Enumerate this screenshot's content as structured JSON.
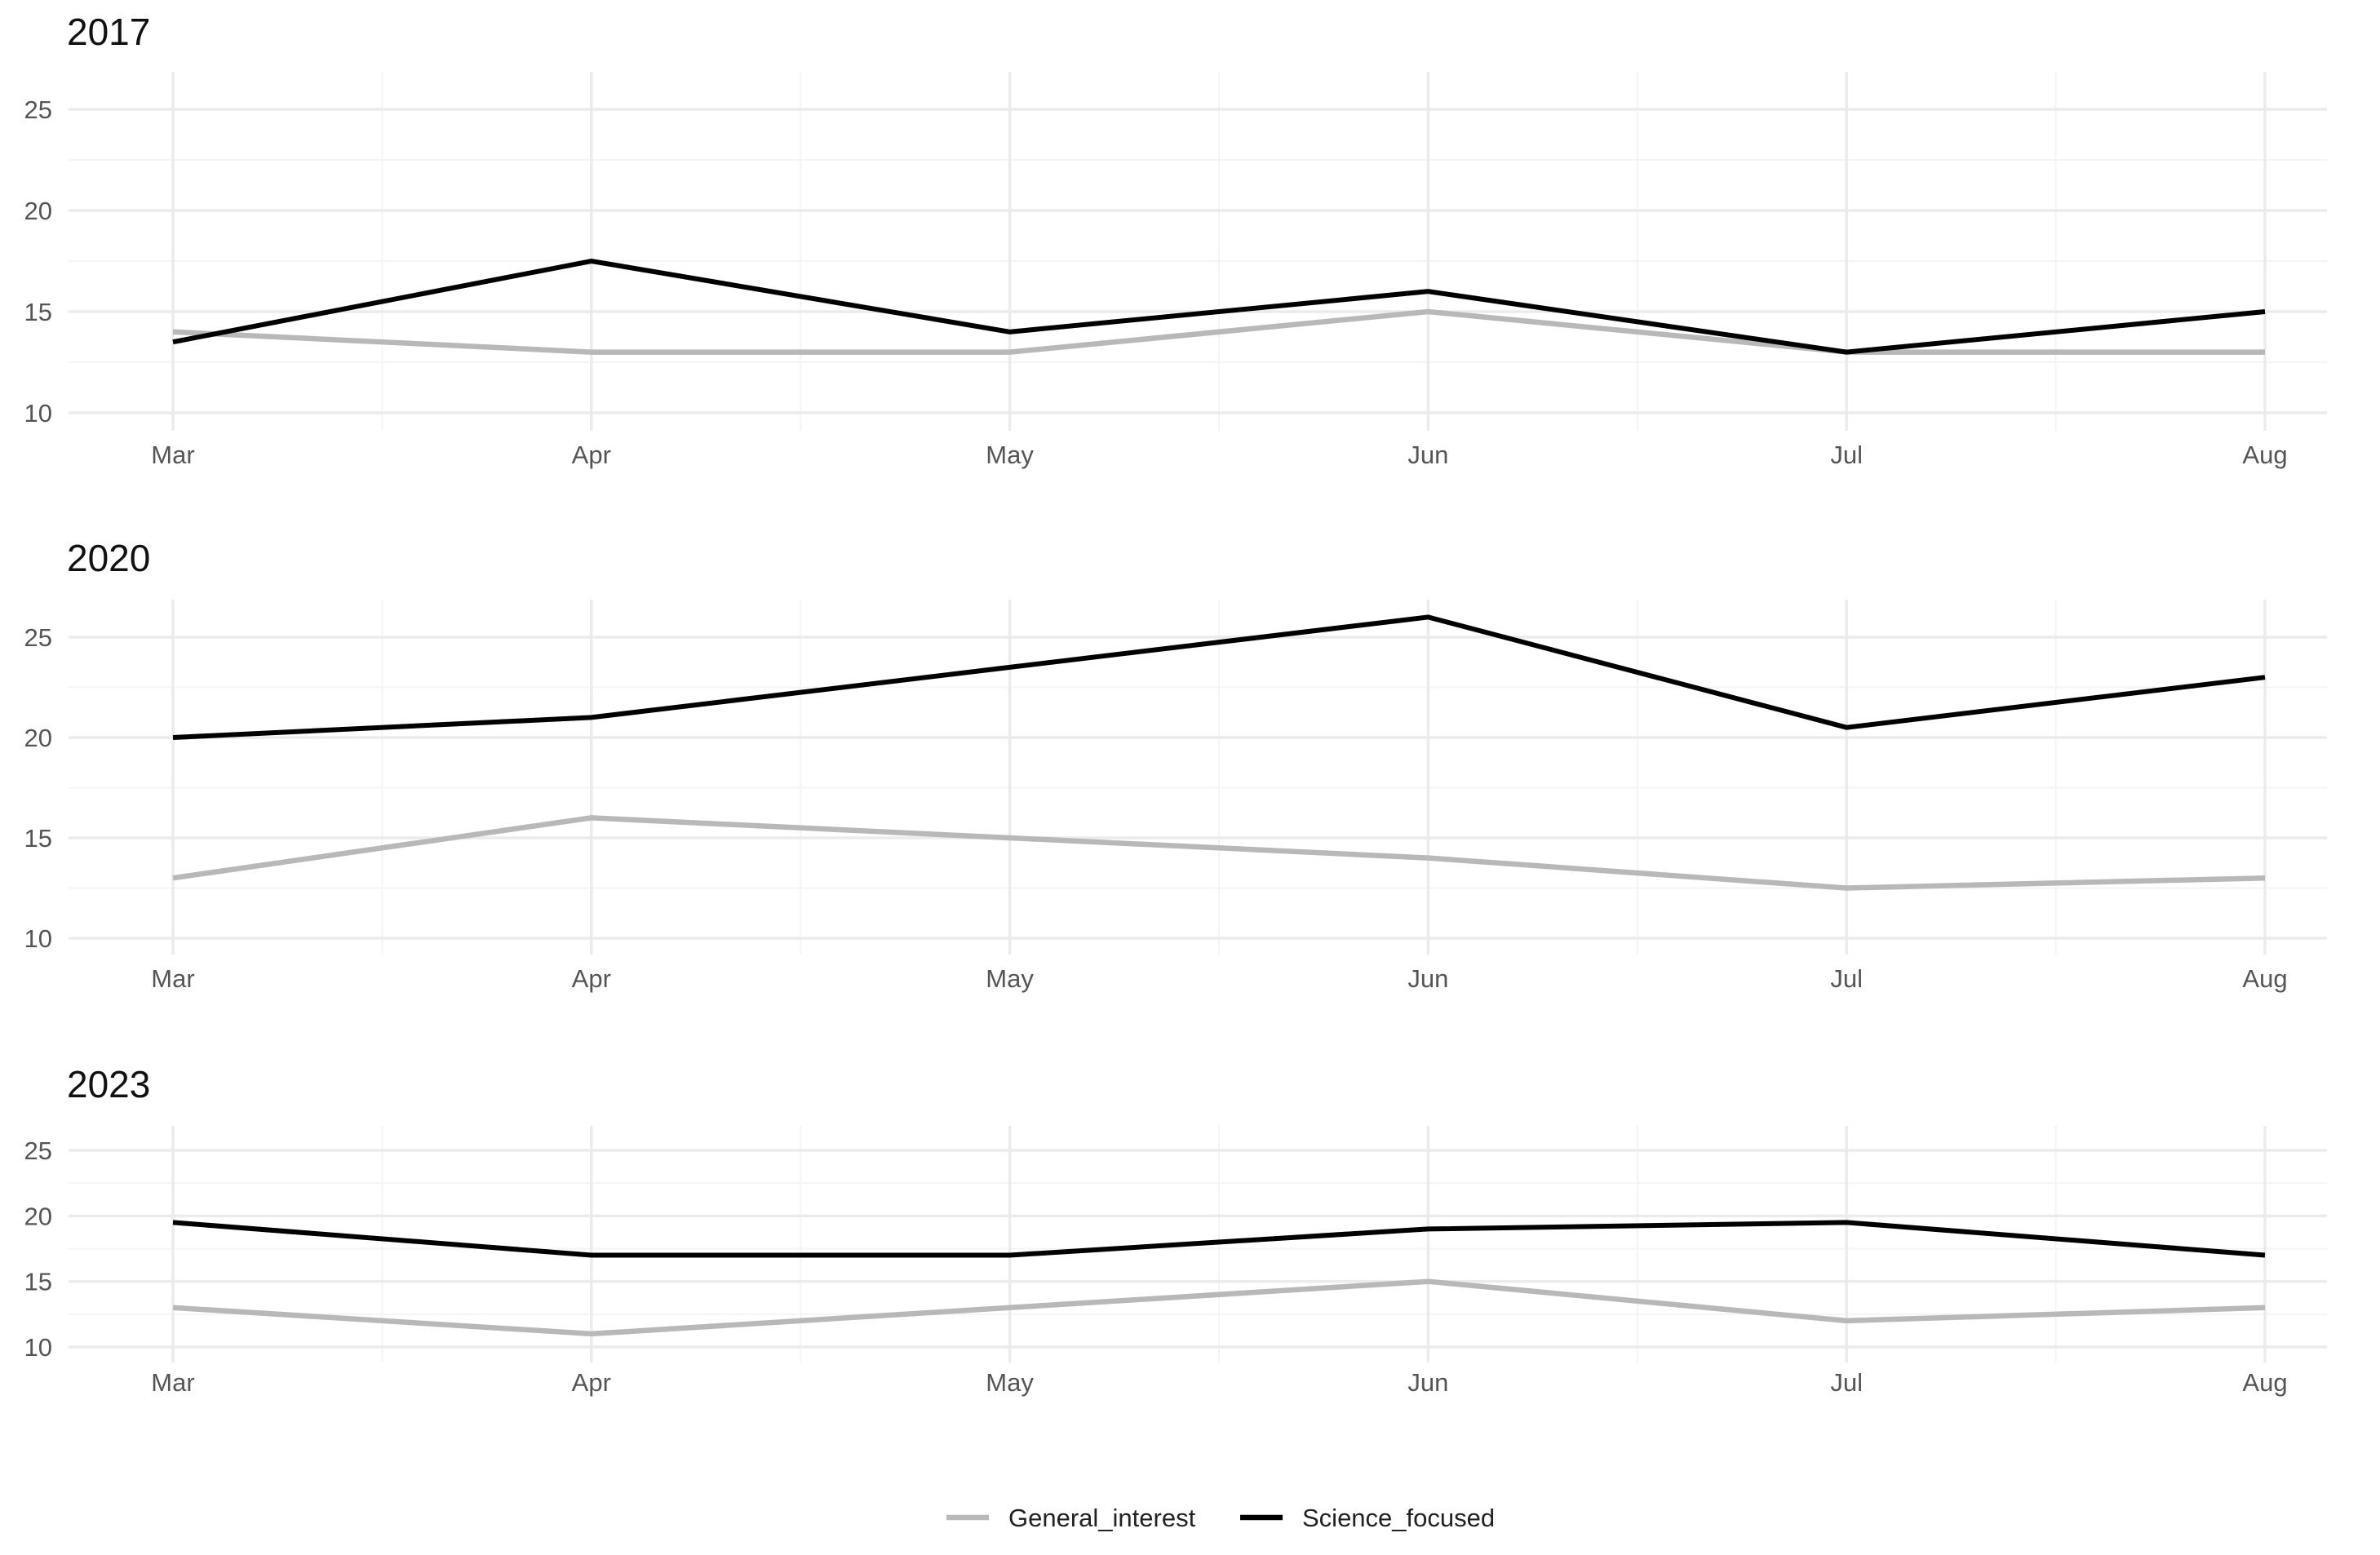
{
  "chart_data": {
    "type": "line",
    "x": [
      "Mar",
      "Apr",
      "May",
      "Jun",
      "Jul",
      "Aug"
    ],
    "ylim": [
      10,
      26
    ],
    "yticks": [
      10,
      15,
      20,
      25
    ],
    "grid": true,
    "legend_position": "bottom",
    "series_styles": [
      {
        "name": "General_interest",
        "color": "#b8b8b8"
      },
      {
        "name": "Science_focused",
        "color": "#000000"
      }
    ],
    "panels": [
      {
        "title": "2017",
        "series": [
          {
            "name": "General_interest",
            "values": [
              14,
              13,
              13,
              15,
              13,
              13
            ]
          },
          {
            "name": "Science_focused",
            "values": [
              13.5,
              17.5,
              14,
              16,
              13,
              15
            ]
          }
        ]
      },
      {
        "title": "2020",
        "series": [
          {
            "name": "General_interest",
            "values": [
              13,
              16,
              15,
              14,
              12.5,
              13
            ]
          },
          {
            "name": "Science_focused",
            "values": [
              20,
              21,
              23.5,
              26,
              20.5,
              23
            ]
          }
        ]
      },
      {
        "title": "2023",
        "series": [
          {
            "name": "General_interest",
            "values": [
              13,
              11,
              13,
              15,
              12,
              13
            ]
          },
          {
            "name": "Science_focused",
            "values": [
              19.5,
              17,
              17,
              19,
              19.5,
              17
            ]
          }
        ]
      }
    ]
  }
}
